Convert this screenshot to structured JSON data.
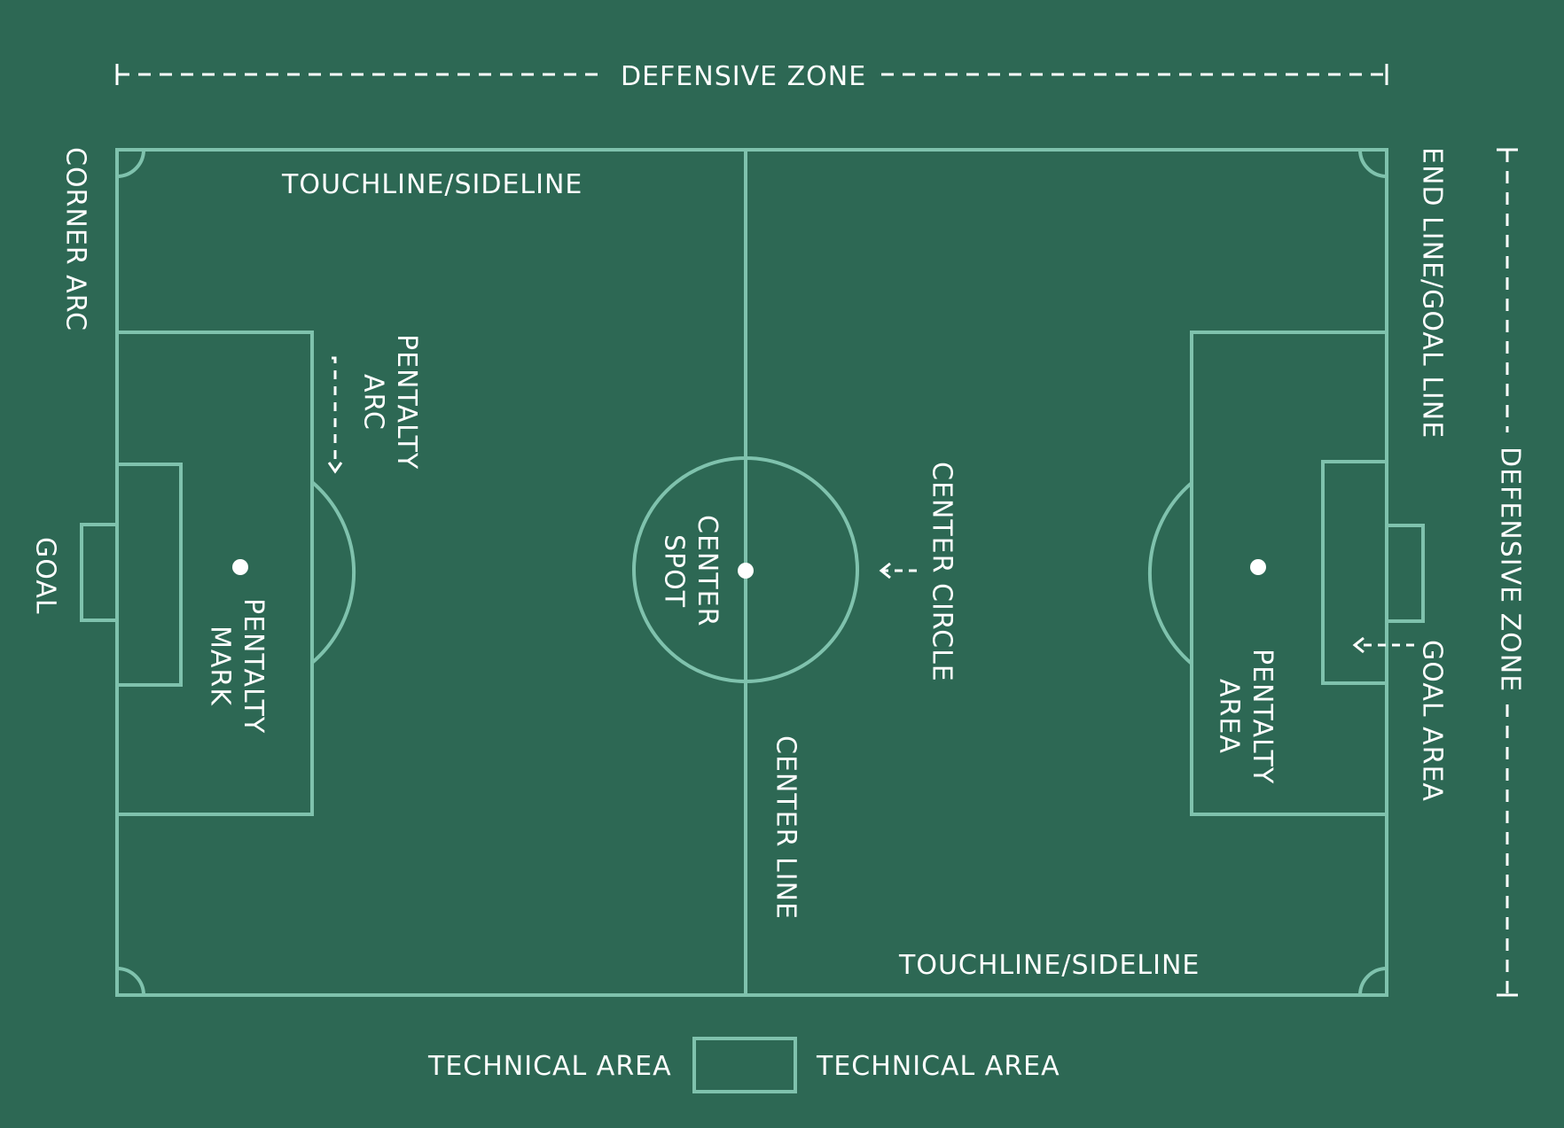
{
  "colors": {
    "background": "#2d6854",
    "lines": "#7fc2ad",
    "text": "#ffffff"
  },
  "labels": {
    "defensive_zone_top": "DEFENSIVE ZONE",
    "defensive_zone_right": "DEFENSIVE ZONE",
    "corner_arc": "CORNER ARC",
    "goal": "GOAL",
    "touchline_top": "TOUCHLINE/SIDELINE",
    "touchline_bottom": "TOUCHLINE/SIDELINE",
    "penalty_arc": [
      "PENTALTY",
      "ARC"
    ],
    "penalty_mark": [
      "PENTALTY",
      "MARK"
    ],
    "center_spot": [
      "CENTER",
      "SPOT"
    ],
    "center_circle": "CENTER CIRCLE",
    "center_line": "CENTER LINE",
    "end_line": "END LINE/GOAL LINE",
    "penalty_area": [
      "PENTALTY",
      "AREA"
    ],
    "goal_area": "GOAL AREA",
    "technical_area_left": "TECHNICAL AREA",
    "technical_area_right": "TECHNICAL AREA"
  }
}
